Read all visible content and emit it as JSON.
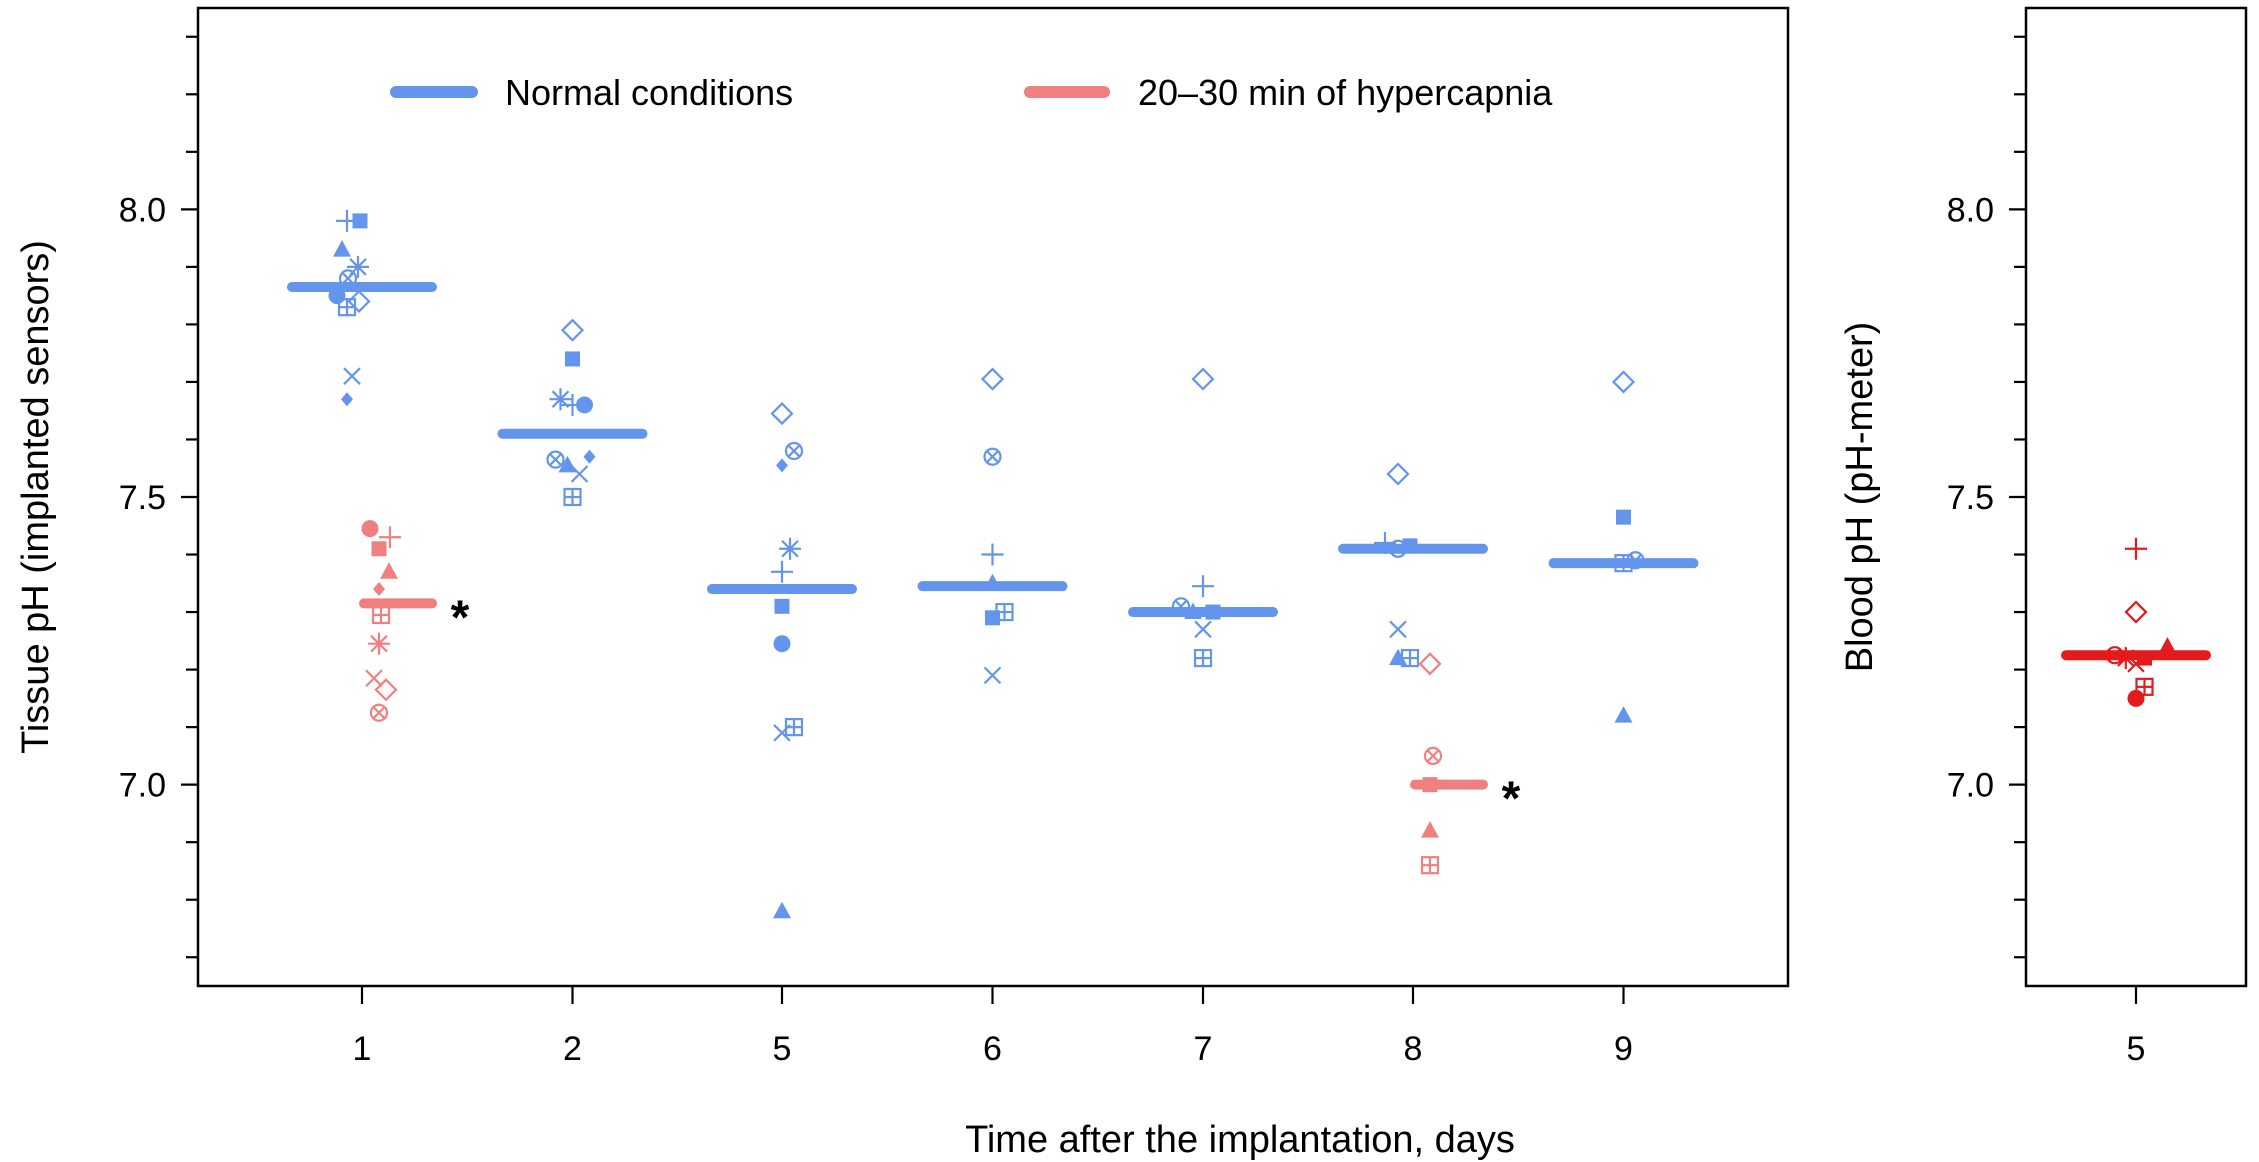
{
  "chart_data": [
    {
      "type": "scatter",
      "xlabel": "Time after the implantation, days",
      "ylabel": "Tissue pH (implanted sensors)",
      "categories": [
        "1",
        "2",
        "5",
        "6",
        "7",
        "8",
        "9"
      ],
      "ylim": [
        6.65,
        8.35
      ],
      "yticks": [
        "7.0",
        "7.5",
        "8.0"
      ],
      "legend_position": "top",
      "grid": false,
      "series": [
        {
          "name": "Normal conditions",
          "color": "#6495ED",
          "groups": [
            {
              "category": "1",
              "mean": 7.865,
              "points": [
                {
                  "marker": "plus",
                  "y": 7.98,
                  "off": -0.15
                },
                {
                  "marker": "square",
                  "y": 7.98,
                  "off": -0.02
                },
                {
                  "marker": "triangle",
                  "y": 7.93,
                  "off": -0.2
                },
                {
                  "marker": "asterisk",
                  "y": 7.9,
                  "off": -0.04
                },
                {
                  "marker": "circle-x",
                  "y": 7.88,
                  "off": -0.14
                },
                {
                  "marker": "circle",
                  "y": 7.85,
                  "off": -0.25
                },
                {
                  "marker": "diamond-open",
                  "y": 7.84,
                  "off": -0.03
                },
                {
                  "marker": "square-plus",
                  "y": 7.83,
                  "off": -0.15
                },
                {
                  "marker": "cross",
                  "y": 7.71,
                  "off": -0.1
                },
                {
                  "marker": "diamond",
                  "y": 7.67,
                  "off": -0.15
                }
              ]
            },
            {
              "category": "2",
              "mean": 7.61,
              "points": [
                {
                  "marker": "diamond-open",
                  "y": 7.79,
                  "off": 0.0
                },
                {
                  "marker": "square",
                  "y": 7.74,
                  "off": 0.0
                },
                {
                  "marker": "asterisk",
                  "y": 7.67,
                  "off": -0.12
                },
                {
                  "marker": "plus",
                  "y": 7.66,
                  "off": 0.0
                },
                {
                  "marker": "circle",
                  "y": 7.66,
                  "off": 0.12
                },
                {
                  "marker": "circle-x",
                  "y": 7.565,
                  "off": -0.17
                },
                {
                  "marker": "diamond",
                  "y": 7.57,
                  "off": 0.17
                },
                {
                  "marker": "triangle",
                  "y": 7.555,
                  "off": -0.05
                },
                {
                  "marker": "cross",
                  "y": 7.54,
                  "off": 0.07
                },
                {
                  "marker": "square-plus",
                  "y": 7.5,
                  "off": 0.0
                }
              ]
            },
            {
              "category": "5",
              "mean": 7.34,
              "points": [
                {
                  "marker": "diamond-open",
                  "y": 7.645,
                  "off": 0.0
                },
                {
                  "marker": "circle-x",
                  "y": 7.58,
                  "off": 0.12
                },
                {
                  "marker": "diamond",
                  "y": 7.555,
                  "off": 0.0
                },
                {
                  "marker": "asterisk",
                  "y": 7.41,
                  "off": 0.08
                },
                {
                  "marker": "plus",
                  "y": 7.37,
                  "off": 0.0
                },
                {
                  "marker": "square",
                  "y": 7.31,
                  "off": 0.0
                },
                {
                  "marker": "circle",
                  "y": 7.245,
                  "off": 0.0
                },
                {
                  "marker": "square-plus",
                  "y": 7.1,
                  "off": 0.12
                },
                {
                  "marker": "cross",
                  "y": 7.09,
                  "off": 0.0
                },
                {
                  "marker": "triangle",
                  "y": 6.78,
                  "off": 0.0
                }
              ]
            },
            {
              "category": "6",
              "mean": 7.345,
              "points": [
                {
                  "marker": "diamond-open",
                  "y": 7.705,
                  "off": 0.0
                },
                {
                  "marker": "circle-x",
                  "y": 7.57,
                  "off": 0.0
                },
                {
                  "marker": "plus",
                  "y": 7.4,
                  "off": 0.0
                },
                {
                  "marker": "triangle",
                  "y": 7.35,
                  "off": 0.0
                },
                {
                  "marker": "square-plus",
                  "y": 7.3,
                  "off": 0.12
                },
                {
                  "marker": "square",
                  "y": 7.29,
                  "off": 0.0
                },
                {
                  "marker": "cross",
                  "y": 7.19,
                  "off": 0.0
                }
              ]
            },
            {
              "category": "7",
              "mean": 7.3,
              "points": [
                {
                  "marker": "diamond-open",
                  "y": 7.705,
                  "off": 0.0
                },
                {
                  "marker": "plus",
                  "y": 7.345,
                  "off": 0.0
                },
                {
                  "marker": "circle-x",
                  "y": 7.31,
                  "off": -0.22
                },
                {
                  "marker": "triangle",
                  "y": 7.3,
                  "off": -0.1
                },
                {
                  "marker": "square",
                  "y": 7.3,
                  "off": 0.1
                },
                {
                  "marker": "cross",
                  "y": 7.27,
                  "off": 0.0
                },
                {
                  "marker": "square-plus",
                  "y": 7.22,
                  "off": 0.0
                }
              ]
            },
            {
              "category": "8",
              "mean": 7.41,
              "points": [
                {
                  "marker": "diamond-open",
                  "y": 7.54,
                  "off": -0.15
                },
                {
                  "marker": "plus",
                  "y": 7.42,
                  "off": -0.28
                },
                {
                  "marker": "square",
                  "y": 7.415,
                  "off": -0.03
                },
                {
                  "marker": "circle-x",
                  "y": 7.41,
                  "off": -0.15
                },
                {
                  "marker": "cross",
                  "y": 7.27,
                  "off": -0.15
                },
                {
                  "marker": "triangle",
                  "y": 7.22,
                  "off": -0.15
                },
                {
                  "marker": "square-plus",
                  "y": 7.22,
                  "off": -0.03
                }
              ]
            },
            {
              "category": "9",
              "mean": 7.385,
              "points": [
                {
                  "marker": "diamond-open",
                  "y": 7.7,
                  "off": 0.0
                },
                {
                  "marker": "square",
                  "y": 7.465,
                  "off": 0.0
                },
                {
                  "marker": "square-plus",
                  "y": 7.385,
                  "off": 0.0
                },
                {
                  "marker": "circle-x",
                  "y": 7.39,
                  "off": 0.12
                },
                {
                  "marker": "triangle",
                  "y": 7.12,
                  "off": 0.0
                }
              ]
            }
          ]
        },
        {
          "name": "20–30 min of hypercapnia",
          "color": "#F08080",
          "groups": [
            {
              "category": "1",
              "mean": 7.315,
              "star": "*",
              "points": [
                {
                  "marker": "circle",
                  "y": 7.445,
                  "off": 0.08
                },
                {
                  "marker": "plus",
                  "y": 7.43,
                  "off": 0.28
                },
                {
                  "marker": "square",
                  "y": 7.41,
                  "off": 0.17
                },
                {
                  "marker": "triangle",
                  "y": 7.37,
                  "off": 0.27
                },
                {
                  "marker": "diamond",
                  "y": 7.34,
                  "off": 0.17
                },
                {
                  "marker": "square-plus",
                  "y": 7.295,
                  "off": 0.19
                },
                {
                  "marker": "asterisk",
                  "y": 7.245,
                  "off": 0.17
                },
                {
                  "marker": "cross",
                  "y": 7.185,
                  "off": 0.12
                },
                {
                  "marker": "diamond-open",
                  "y": 7.165,
                  "off": 0.24
                },
                {
                  "marker": "circle-x",
                  "y": 7.125,
                  "off": 0.17
                }
              ]
            },
            {
              "category": "8",
              "mean": 7.0,
              "star": "*",
              "points": [
                {
                  "marker": "diamond-open",
                  "y": 7.21,
                  "off": 0.17
                },
                {
                  "marker": "circle-x",
                  "y": 7.05,
                  "off": 0.2
                },
                {
                  "marker": "square",
                  "y": 7.0,
                  "off": 0.17
                },
                {
                  "marker": "triangle",
                  "y": 6.92,
                  "off": 0.17
                },
                {
                  "marker": "square-plus",
                  "y": 6.86,
                  "off": 0.17
                }
              ]
            }
          ]
        }
      ]
    },
    {
      "type": "scatter",
      "ylabel": "Blood pH (pH-meter)",
      "categories": [
        "5"
      ],
      "ylim": [
        6.65,
        8.35
      ],
      "yticks": [
        "7.0",
        "7.5",
        "8.0"
      ],
      "grid": false,
      "series": [
        {
          "color": "#E41A1C",
          "groups": [
            {
              "category": "5",
              "mean": 7.225,
              "points": [
                {
                  "marker": "plus",
                  "y": 7.41,
                  "off": 0.0
                },
                {
                  "marker": "diamond-open",
                  "y": 7.3,
                  "off": 0.0
                },
                {
                  "marker": "triangle",
                  "y": 7.24,
                  "off": 0.37
                },
                {
                  "marker": "circle-x",
                  "y": 7.225,
                  "off": -0.25
                },
                {
                  "marker": "asterisk",
                  "y": 7.22,
                  "off": -0.12
                },
                {
                  "marker": "cross",
                  "y": 7.21,
                  "off": 0.0
                },
                {
                  "marker": "square",
                  "y": 7.22,
                  "off": 0.1
                },
                {
                  "marker": "square-plus",
                  "y": 7.17,
                  "off": 0.1
                },
                {
                  "marker": "circle",
                  "y": 7.15,
                  "off": 0.0
                }
              ]
            }
          ]
        }
      ]
    }
  ]
}
